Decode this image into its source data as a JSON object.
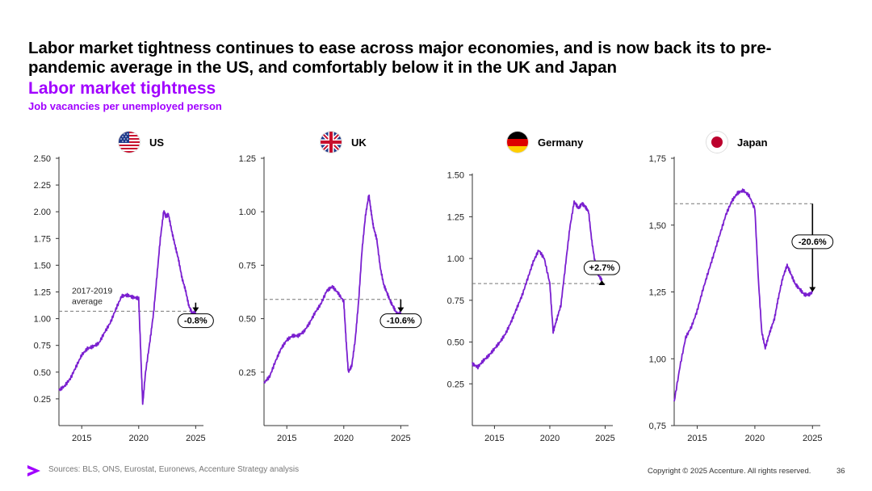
{
  "headline": "Labor market tightness continues to ease across major economies, and is now back its to pre-pandemic average in the US, and comfortably below it in the UK and Japan",
  "subtitle": "Labor market tightness",
  "subsubtitle": "Job vacancies per unemployed person",
  "footer": {
    "sources": "Sources: BLS, ONS, Eurostat, Euronews, Accenture Strategy analysis",
    "copyright": "Copyright © 2025 Accenture. All rights reserved.",
    "page": "36"
  },
  "colors": {
    "accent": "#a100ff",
    "line": "#7a1fd0"
  },
  "chart_data": [
    {
      "type": "line",
      "country": "US",
      "flag": "us-flag-icon",
      "ylim": [
        0.0,
        2.5
      ],
      "yticks": [
        0.25,
        0.5,
        0.75,
        1.0,
        1.25,
        1.5,
        1.75,
        2.0,
        2.25,
        2.5
      ],
      "ytick_labels": [
        "0.25",
        "0.50",
        "0.75",
        "1.00",
        "1.25",
        "1.50",
        "1.75",
        "2.00",
        "2.25",
        "2.50"
      ],
      "xlim": [
        2013.0,
        2025.4
      ],
      "xticks": [
        2015,
        2020,
        2025
      ],
      "xtick_labels": [
        "2015",
        "2020",
        "2025"
      ],
      "average": 1.07,
      "average_label": [
        "2017-2019",
        "average"
      ],
      "change_label": "-0.8%",
      "arrow_from": 1.15,
      "x": [
        2013.0,
        2013.5,
        2014.0,
        2014.5,
        2015.0,
        2015.5,
        2016.0,
        2016.5,
        2017.0,
        2017.5,
        2018.0,
        2018.5,
        2019.0,
        2019.5,
        2020.0,
        2020.2,
        2020.35,
        2020.6,
        2021.0,
        2021.3,
        2021.6,
        2021.9,
        2022.2,
        2022.4,
        2022.6,
        2022.9,
        2023.2,
        2023.5,
        2023.8,
        2024.1,
        2024.4,
        2024.7,
        2025.0
      ],
      "values": [
        0.33,
        0.37,
        0.44,
        0.55,
        0.66,
        0.72,
        0.74,
        0.77,
        0.87,
        0.96,
        1.09,
        1.21,
        1.22,
        1.2,
        1.19,
        0.62,
        0.2,
        0.5,
        0.8,
        1.05,
        1.4,
        1.75,
        2.01,
        1.95,
        1.98,
        1.82,
        1.68,
        1.55,
        1.38,
        1.27,
        1.12,
        1.05,
        1.06
      ]
    },
    {
      "type": "line",
      "country": "UK",
      "flag": "uk-flag-icon",
      "ylim": [
        0.0,
        1.25
      ],
      "yticks": [
        0.25,
        0.5,
        0.75,
        1.0,
        1.25
      ],
      "ytick_labels": [
        "0.25",
        "0.50",
        "0.75",
        "1.00",
        "1.25"
      ],
      "xlim": [
        2013.0,
        2025.4
      ],
      "xticks": [
        2015,
        2020,
        2025
      ],
      "xtick_labels": [
        "2015",
        "2020",
        "2025"
      ],
      "average": 0.59,
      "average_label": null,
      "change_label": "-10.6%",
      "arrow_from": 0.59,
      "x": [
        2013.0,
        2013.5,
        2014.0,
        2014.5,
        2015.0,
        2015.5,
        2016.0,
        2016.5,
        2017.0,
        2017.5,
        2018.0,
        2018.5,
        2019.0,
        2019.5,
        2020.0,
        2020.2,
        2020.4,
        2020.7,
        2021.0,
        2021.3,
        2021.6,
        2021.9,
        2022.2,
        2022.4,
        2022.6,
        2022.9,
        2023.2,
        2023.5,
        2023.8,
        2024.1,
        2024.4,
        2024.7,
        2025.0
      ],
      "values": [
        0.2,
        0.23,
        0.3,
        0.36,
        0.4,
        0.42,
        0.42,
        0.44,
        0.48,
        0.53,
        0.57,
        0.63,
        0.65,
        0.62,
        0.58,
        0.4,
        0.25,
        0.28,
        0.4,
        0.58,
        0.82,
        0.98,
        1.08,
        1.0,
        0.93,
        0.87,
        0.74,
        0.66,
        0.62,
        0.58,
        0.55,
        0.52,
        0.53
      ]
    },
    {
      "type": "line",
      "country": "Germany",
      "flag": "germany-flag-icon",
      "ylim": [
        0.0,
        1.6
      ],
      "yticks": [
        0.25,
        0.5,
        0.75,
        1.0,
        1.25,
        1.5
      ],
      "ytick_labels": [
        "0.25",
        "0.50",
        "0.75",
        "1.00",
        "1.25",
        "1.50"
      ],
      "xlim": [
        2013.0,
        2025.4
      ],
      "xticks": [
        2015,
        2020,
        2025
      ],
      "xtick_labels": [
        "2015",
        "2020",
        "2025"
      ],
      "average": 0.85,
      "average_label": null,
      "change_label": "+2.7%",
      "arrow_from": 0.85,
      "x": [
        2013.0,
        2013.5,
        2014.0,
        2014.5,
        2015.0,
        2015.5,
        2016.0,
        2016.5,
        2017.0,
        2017.5,
        2018.0,
        2018.5,
        2019.0,
        2019.5,
        2020.0,
        2020.3,
        2020.6,
        2021.0,
        2021.4,
        2021.8,
        2022.2,
        2022.6,
        2022.9,
        2023.2,
        2023.5,
        2023.8,
        2024.1,
        2024.4,
        2024.7
      ],
      "values": [
        0.37,
        0.35,
        0.39,
        0.42,
        0.46,
        0.5,
        0.55,
        0.62,
        0.7,
        0.78,
        0.88,
        0.98,
        1.05,
        1.0,
        0.85,
        0.56,
        0.63,
        0.72,
        0.95,
        1.18,
        1.34,
        1.3,
        1.33,
        1.31,
        1.28,
        1.1,
        0.97,
        0.9,
        0.87
      ]
    },
    {
      "type": "line",
      "country": "Japan",
      "flag": "japan-flag-icon",
      "ylim": [
        0.75,
        1.75
      ],
      "yticks": [
        0.75,
        1.0,
        1.25,
        1.5,
        1.75
      ],
      "ytick_labels": [
        "0,75",
        "1,00",
        "1,25",
        "1,50",
        "1,75"
      ],
      "xlim": [
        2013.0,
        2025.4
      ],
      "xticks": [
        2015,
        2020,
        2025
      ],
      "xtick_labels": [
        "2015",
        "2020",
        "2025"
      ],
      "average": 1.58,
      "average_label": null,
      "change_label": "-20.6%",
      "arrow_from": 1.58,
      "x": [
        2013.0,
        2013.5,
        2014.0,
        2014.5,
        2015.0,
        2015.5,
        2016.0,
        2016.5,
        2017.0,
        2017.5,
        2018.0,
        2018.5,
        2019.0,
        2019.5,
        2020.0,
        2020.3,
        2020.6,
        2020.9,
        2021.3,
        2021.7,
        2022.0,
        2022.4,
        2022.8,
        2023.1,
        2023.5,
        2023.9,
        2024.3,
        2024.7,
        2025.0
      ],
      "values": [
        0.84,
        0.97,
        1.08,
        1.12,
        1.18,
        1.26,
        1.33,
        1.4,
        1.47,
        1.54,
        1.59,
        1.62,
        1.63,
        1.61,
        1.56,
        1.3,
        1.1,
        1.04,
        1.1,
        1.15,
        1.22,
        1.3,
        1.35,
        1.32,
        1.28,
        1.26,
        1.24,
        1.24,
        1.25
      ]
    }
  ]
}
